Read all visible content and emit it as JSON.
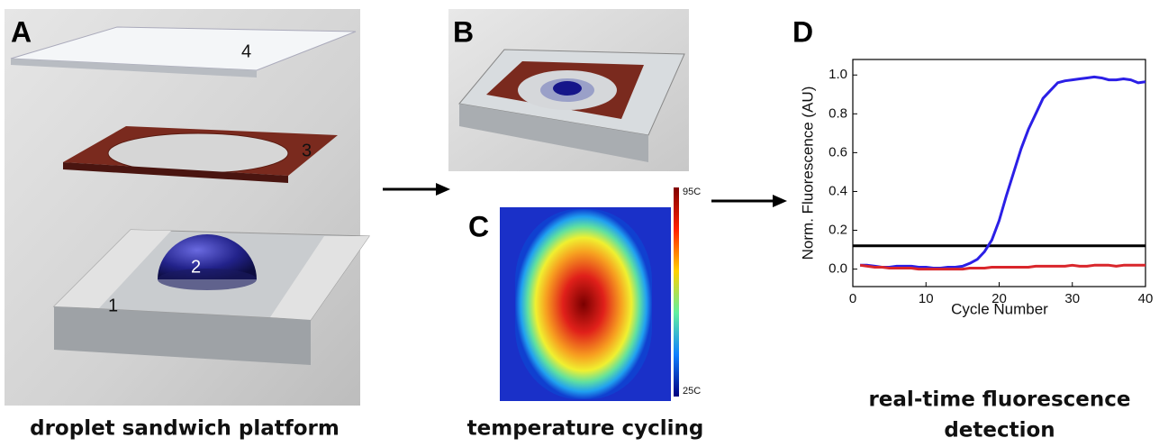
{
  "panels": {
    "a": {
      "label": "A",
      "components": [
        "1",
        "2",
        "3",
        "4"
      ],
      "caption": "droplet sandwich platform"
    },
    "b": {
      "label": "B"
    },
    "c": {
      "label": "C",
      "colorbar": {
        "max_label": "95C",
        "min_label": "25C"
      },
      "caption": "temperature cycling"
    },
    "d": {
      "label": "D",
      "caption_lines": [
        "real-time fluorescence",
        "detection"
      ]
    }
  },
  "chart_data": {
    "type": "line",
    "x_label": "Cycle Number",
    "y_label": "Norm. Fluorescence (AU)",
    "x": [
      1,
      2,
      3,
      4,
      5,
      6,
      7,
      8,
      9,
      10,
      11,
      12,
      13,
      14,
      15,
      16,
      17,
      18,
      19,
      20,
      21,
      22,
      23,
      24,
      25,
      26,
      27,
      28,
      29,
      30,
      31,
      32,
      33,
      34,
      35,
      36,
      37,
      38,
      39,
      40
    ],
    "series": [
      {
        "color": "#2b1fe6",
        "values": [
          0.02,
          0.02,
          0.015,
          0.01,
          0.01,
          0.015,
          0.015,
          0.015,
          0.01,
          0.01,
          0.005,
          0.005,
          0.01,
          0.01,
          0.015,
          0.03,
          0.05,
          0.09,
          0.15,
          0.25,
          0.38,
          0.5,
          0.62,
          0.72,
          0.8,
          0.88,
          0.92,
          0.96,
          0.97,
          0.975,
          0.98,
          0.985,
          0.99,
          0.985,
          0.975,
          0.975,
          0.98,
          0.975,
          0.96,
          0.965
        ]
      },
      {
        "color": "#d9262b",
        "values": [
          0.02,
          0.015,
          0.01,
          0.01,
          0.005,
          0.005,
          0.005,
          0.005,
          0.0,
          0.0,
          0.0,
          0.0,
          0.0,
          0.0,
          0.0,
          0.005,
          0.005,
          0.005,
          0.01,
          0.01,
          0.01,
          0.01,
          0.01,
          0.01,
          0.015,
          0.015,
          0.015,
          0.015,
          0.015,
          0.02,
          0.015,
          0.015,
          0.02,
          0.02,
          0.02,
          0.015,
          0.02,
          0.02,
          0.02,
          0.02
        ]
      }
    ],
    "hlines": [
      {
        "y": 0.12,
        "color": "#000000"
      }
    ],
    "xlim": [
      0,
      40
    ],
    "ylim": [
      -0.09,
      1.08
    ],
    "xticks": [
      0,
      10,
      20,
      30,
      40
    ],
    "yticks": [
      {
        "value": 0,
        "label": "0.0"
      },
      {
        "value": 0.2,
        "label": "0.2"
      },
      {
        "value": 0.4,
        "label": "0.4"
      },
      {
        "value": 0.6,
        "label": "0.6"
      },
      {
        "value": 0.8,
        "label": "0.8"
      },
      {
        "value": 1,
        "label": "1.0"
      }
    ]
  }
}
